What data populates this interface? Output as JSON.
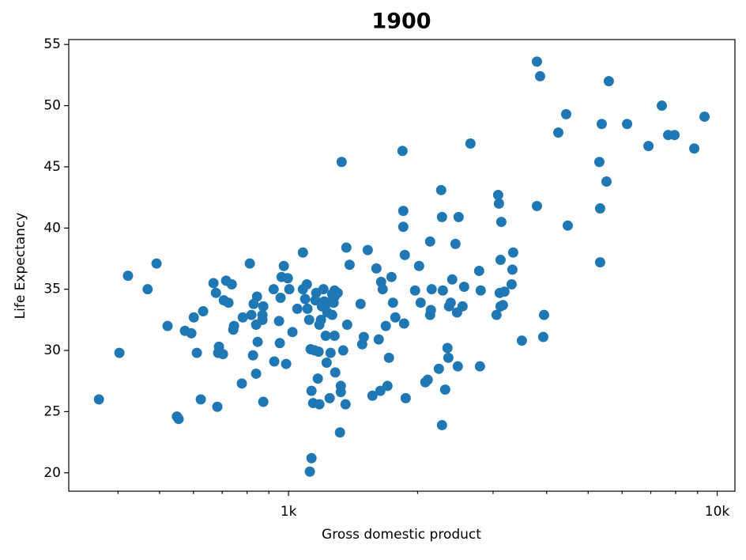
{
  "chart_data": {
    "type": "scatter",
    "title": "1900",
    "x_label": "Gross domestic product",
    "y_label": "Life Expectancy",
    "xscale": "log",
    "color": "#1f77b4",
    "xlim": [
      307,
      11000
    ],
    "ylim": [
      18.5,
      55.4
    ],
    "xticks": [
      {
        "value": 1000,
        "label": "1k"
      },
      {
        "value": 10000,
        "label": "10k"
      }
    ],
    "xminorticks": [
      400,
      500,
      600,
      700,
      800,
      900,
      2000,
      3000,
      4000,
      5000,
      6000,
      7000,
      8000,
      9000
    ],
    "yticks": [
      20,
      25,
      30,
      35,
      40,
      45,
      50,
      55
    ],
    "x": [
      361,
      403,
      422,
      469,
      492,
      522,
      549,
      554,
      573,
      593,
      601,
      611,
      624,
      632,
      668,
      677,
      685,
      682,
      688,
      703,
      706,
      715,
      724,
      737,
      743,
      746,
      778,
      782,
      812,
      819,
      826,
      829,
      840,
      840,
      844,
      847,
      869,
      869,
      873,
      873,
      923,
      926,
      950,
      954,
      958,
      963,
      996,
      975,
      987,
      1004,
      1021,
      1048,
      1080,
      1080,
      1093,
      1103,
      1107,
      1117,
      1121,
      1126,
      1131,
      1131,
      1141,
      1151,
      1155,
      1160,
      1170,
      1175,
      1180,
      1180,
      1190,
      1196,
      1206,
      1211,
      1221,
      1227,
      1232,
      1237,
      1247,
      1253,
      1264,
      1264,
      1274,
      1280,
      1280,
      1280,
      1285,
      1302,
      1318,
      1324,
      1324,
      1330,
      1341,
      1358,
      1364,
      1370,
      1388,
      1472,
      1485,
      1498,
      1530,
      1569,
      1603,
      1623,
      1637,
      1644,
      1658,
      1686,
      1701,
      1715,
      1738,
      1752,
      1775,
      1844,
      1852,
      1852,
      1860,
      1867,
      1876,
      1973,
      2016,
      2033,
      2085,
      2112,
      2139,
      2139,
      2148,
      2157,
      2242,
      2270,
      2280,
      2280,
      2290,
      2319,
      2348,
      2359,
      2368,
      2389,
      2409,
      2451,
      2472,
      2482,
      2493,
      2546,
      2568,
      2657,
      2784,
      2796,
      2807,
      3056,
      3083,
      3096,
      3109,
      3123,
      3123,
      3136,
      3162,
      3189,
      3314,
      3328,
      3342,
      3502,
      3797,
      3797,
      3862,
      3928,
      3945,
      4259,
      4443,
      4481,
      5310,
      5332,
      5332,
      5378,
      5517,
      5587,
      6163,
      6912,
      7427,
      7684,
      7951,
      8841,
      9342
    ],
    "values": [
      26.0,
      29.8,
      36.1,
      35.0,
      37.1,
      32.0,
      24.6,
      24.4,
      31.6,
      31.4,
      32.7,
      29.8,
      26.0,
      33.2,
      35.5,
      34.7,
      29.8,
      25.4,
      30.3,
      29.7,
      34.1,
      35.7,
      33.9,
      35.4,
      31.7,
      32.0,
      27.3,
      32.7,
      37.1,
      32.9,
      29.6,
      33.8,
      28.1,
      32.1,
      34.4,
      30.7,
      32.9,
      32.5,
      33.6,
      25.8,
      35.0,
      29.1,
      32.4,
      30.6,
      34.3,
      36.0,
      35.9,
      36.9,
      28.9,
      35.0,
      31.5,
      33.4,
      38.0,
      35.0,
      34.2,
      35.4,
      33.4,
      32.5,
      20.1,
      30.1,
      21.2,
      26.7,
      25.7,
      30.0,
      34.1,
      34.7,
      27.7,
      29.9,
      25.6,
      32.1,
      32.5,
      33.6,
      35.0,
      34.0,
      31.2,
      29.0,
      33.1,
      33.9,
      26.1,
      29.8,
      34.6,
      32.9,
      33.9,
      34.4,
      31.2,
      34.9,
      28.2,
      34.7,
      23.3,
      27.1,
      26.6,
      45.4,
      30.0,
      25.6,
      38.4,
      32.1,
      37.0,
      33.8,
      30.5,
      31.1,
      38.2,
      26.3,
      36.7,
      30.9,
      26.7,
      35.6,
      35.0,
      32.0,
      27.1,
      29.4,
      36.0,
      33.9,
      32.7,
      46.3,
      41.4,
      40.1,
      32.2,
      37.8,
      26.1,
      34.9,
      36.9,
      33.9,
      27.4,
      27.6,
      38.9,
      32.9,
      33.3,
      35.0,
      28.5,
      43.1,
      40.9,
      23.9,
      34.9,
      26.8,
      30.2,
      29.4,
      33.6,
      33.9,
      35.8,
      38.7,
      33.1,
      28.7,
      40.9,
      33.6,
      35.2,
      46.9,
      36.5,
      28.7,
      34.9,
      32.9,
      42.7,
      42.0,
      34.7,
      37.4,
      33.6,
      40.5,
      33.7,
      34.8,
      35.4,
      36.6,
      38.0,
      30.8,
      53.6,
      41.8,
      52.4,
      31.1,
      32.9,
      47.8,
      49.3,
      40.2,
      45.4,
      41.6,
      37.2,
      48.5,
      43.8,
      52.0,
      48.5,
      46.7,
      50.0,
      47.6,
      47.6,
      46.5,
      49.1
    ]
  }
}
